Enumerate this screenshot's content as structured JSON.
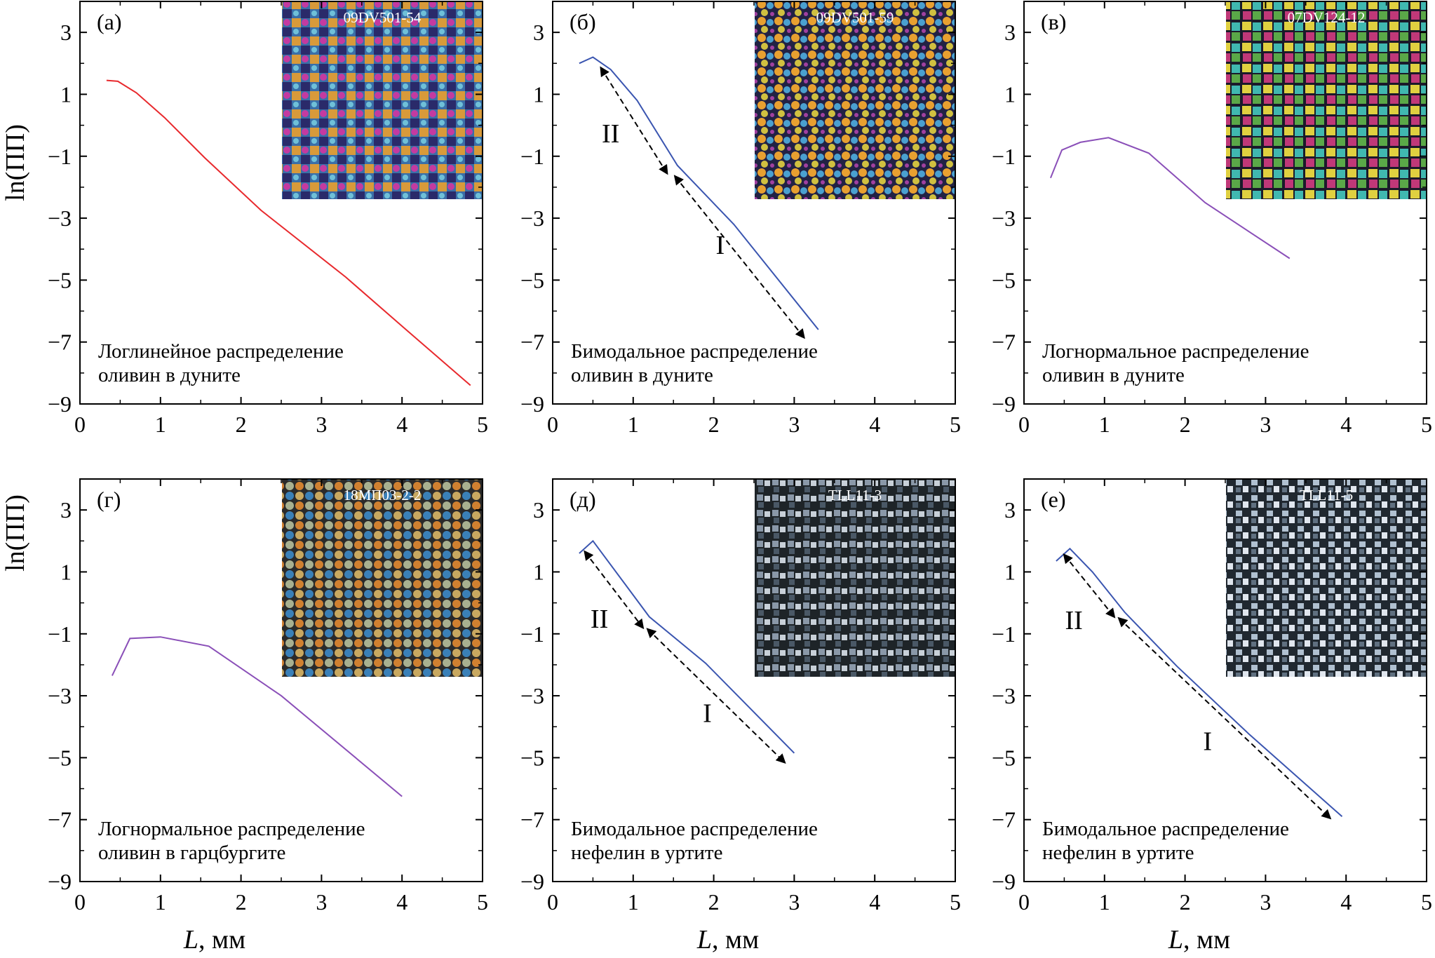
{
  "figure": {
    "ylabel": "ln(ПП)",
    "xlabel_italic": "L",
    "xlabel_unit": ", мм"
  },
  "chart_data": [
    {
      "type": "line",
      "panel": "(а)",
      "inset_label": "09DV501-54",
      "line_color": "#e8292d",
      "description": [
        "Логлинейное распределение",
        "оливин в дуните"
      ],
      "x_ticks": [
        "0",
        "1",
        "2",
        "3",
        "4",
        "5"
      ],
      "y_ticks": [
        "3",
        "1",
        "−1",
        "−3",
        "−5",
        "−7",
        "−9"
      ],
      "xlim": [
        0,
        5
      ],
      "ylim": [
        -9,
        4
      ],
      "x": [
        0.33,
        0.47,
        0.7,
        1.05,
        1.55,
        2.25,
        3.3,
        4.05,
        4.85
      ],
      "y": [
        1.45,
        1.42,
        1.05,
        0.25,
        -1.05,
        -2.75,
        -4.9,
        -6.6,
        -8.4
      ],
      "arrows": [],
      "markers": []
    },
    {
      "type": "line",
      "panel": "(б)",
      "inset_label": "09DV501-59",
      "line_color": "#3a55b0",
      "description": [
        "Бимодальное распределение",
        "оливин в дуните"
      ],
      "x_ticks": [
        "0",
        "1",
        "2",
        "3",
        "4",
        "5"
      ],
      "y_ticks": [
        "3",
        "1",
        "−1",
        "−3",
        "−5",
        "−7",
        "−9"
      ],
      "xlim": [
        0,
        5
      ],
      "ylim": [
        -9,
        4
      ],
      "x": [
        0.33,
        0.5,
        0.72,
        1.05,
        1.55,
        2.25,
        3.3
      ],
      "y": [
        2.0,
        2.2,
        1.8,
        0.8,
        -1.3,
        -3.2,
        -6.6
      ],
      "arrows": [
        {
          "from": [
            0.6,
            1.85
          ],
          "to": [
            1.42,
            -1.55
          ]
        },
        {
          "from": [
            1.52,
            -1.65
          ],
          "to": [
            3.12,
            -6.85
          ]
        }
      ],
      "markers": [
        {
          "text": "II",
          "at": [
            0.72,
            -0.55
          ]
        },
        {
          "text": "I",
          "at": [
            2.08,
            -4.15
          ]
        }
      ]
    },
    {
      "type": "line",
      "panel": "(в)",
      "inset_label": "07DV124-12",
      "line_color": "#8a4fb8",
      "description": [
        "Логнормальное распределение",
        "оливин в дуните"
      ],
      "x_ticks": [
        "0",
        "1",
        "2",
        "3",
        "4",
        "5"
      ],
      "y_ticks": [
        "3",
        "1",
        "−1",
        "−3",
        "−5",
        "−7",
        "−9"
      ],
      "xlim": [
        0,
        5
      ],
      "ylim": [
        -9,
        4
      ],
      "x": [
        0.33,
        0.47,
        0.7,
        1.05,
        1.55,
        2.25,
        3.3
      ],
      "y": [
        -1.7,
        -0.8,
        -0.55,
        -0.4,
        -0.9,
        -2.5,
        -4.3
      ],
      "arrows": [],
      "markers": []
    },
    {
      "type": "line",
      "panel": "(г)",
      "inset_label": "18МП03-2-2",
      "line_color": "#8a4fb8",
      "description": [
        "Логнормальное распределение",
        "оливин в гарцбургите"
      ],
      "x_ticks": [
        "0",
        "1",
        "2",
        "3",
        "4",
        "5"
      ],
      "y_ticks": [
        "3",
        "1",
        "−1",
        "−3",
        "−5",
        "−7",
        "−9"
      ],
      "xlim": [
        0,
        5
      ],
      "ylim": [
        -9,
        4
      ],
      "x": [
        0.4,
        0.62,
        1.0,
        1.6,
        2.5,
        4.0
      ],
      "y": [
        -2.35,
        -1.15,
        -1.1,
        -1.4,
        -3.0,
        -6.25
      ],
      "arrows": [],
      "markers": []
    },
    {
      "type": "line",
      "panel": "(д)",
      "inset_label": "TLL11-3",
      "line_color": "#3a55b0",
      "description": [
        "Бимодальное распределение",
        "нефелин в уртите"
      ],
      "x_ticks": [
        "0",
        "1",
        "2",
        "3",
        "4",
        "5"
      ],
      "y_ticks": [
        "3",
        "1",
        "−1",
        "−3",
        "−5",
        "−7",
        "−9"
      ],
      "xlim": [
        0,
        5
      ],
      "ylim": [
        -9,
        4
      ],
      "x": [
        0.33,
        0.5,
        1.2,
        1.9,
        3.0
      ],
      "y": [
        1.6,
        2.0,
        -0.45,
        -1.95,
        -4.85
      ],
      "arrows": [
        {
          "from": [
            0.4,
            1.65
          ],
          "to": [
            1.12,
            -0.8
          ]
        },
        {
          "from": [
            1.18,
            -0.85
          ],
          "to": [
            2.88,
            -5.15
          ]
        }
      ],
      "markers": [
        {
          "text": "II",
          "at": [
            0.58,
            -0.8
          ]
        },
        {
          "text": "I",
          "at": [
            1.92,
            -3.85
          ]
        }
      ]
    },
    {
      "type": "line",
      "panel": "(е)",
      "inset_label": "TLL11-5",
      "line_color": "#3a55b0",
      "description": [
        "Бимодальное распределение",
        "нефелин в уртите"
      ],
      "x_ticks": [
        "0",
        "1",
        "2",
        "3",
        "4",
        "5"
      ],
      "y_ticks": [
        "3",
        "1",
        "−1",
        "−3",
        "−5",
        "−7",
        "−9"
      ],
      "xlim": [
        0,
        5
      ],
      "ylim": [
        -9,
        4
      ],
      "x": [
        0.4,
        0.57,
        0.85,
        1.25,
        1.9,
        2.8,
        3.95
      ],
      "y": [
        1.35,
        1.75,
        1.0,
        -0.3,
        -2.05,
        -4.25,
        -6.9
      ],
      "arrows": [
        {
          "from": [
            0.5,
            1.55
          ],
          "to": [
            1.12,
            -0.45
          ]
        },
        {
          "from": [
            1.18,
            -0.5
          ],
          "to": [
            3.8,
            -6.95
          ]
        }
      ],
      "markers": [
        {
          "text": "II",
          "at": [
            0.62,
            -0.85
          ]
        },
        {
          "text": "I",
          "at": [
            2.28,
            -4.75
          ]
        }
      ]
    }
  ]
}
